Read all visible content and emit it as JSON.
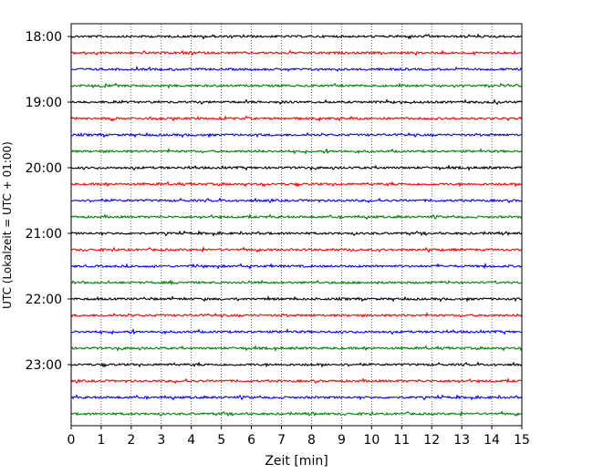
{
  "chart_data": {
    "type": "line",
    "title": "",
    "xlabel": "Zeit  [min]",
    "ylabel": "UTC (Lokalzeit = UTC + 01:00)",
    "xlim": [
      0,
      15
    ],
    "x_ticks": [
      "0",
      "1",
      "2",
      "3",
      "4",
      "5",
      "6",
      "7",
      "8",
      "9",
      "10",
      "11",
      "12",
      "13",
      "14",
      "15"
    ],
    "y_tick_labels": [
      "18:00",
      "19:00",
      "20:00",
      "21:00",
      "22:00",
      "23:00"
    ],
    "minutes_per_trace": 15,
    "trace_color_cycle": [
      "#000000",
      "#ff0000",
      "#0000ff",
      "#008000"
    ],
    "traces": [
      {
        "start": "18:00",
        "color": "#000000"
      },
      {
        "start": "18:15",
        "color": "#ff0000"
      },
      {
        "start": "18:30",
        "color": "#0000ff"
      },
      {
        "start": "18:45",
        "color": "#008000"
      },
      {
        "start": "19:00",
        "color": "#000000"
      },
      {
        "start": "19:15",
        "color": "#ff0000"
      },
      {
        "start": "19:30",
        "color": "#0000ff"
      },
      {
        "start": "19:45",
        "color": "#008000"
      },
      {
        "start": "20:00",
        "color": "#000000"
      },
      {
        "start": "20:15",
        "color": "#ff0000"
      },
      {
        "start": "20:30",
        "color": "#0000ff"
      },
      {
        "start": "20:45",
        "color": "#008000"
      },
      {
        "start": "21:00",
        "color": "#000000"
      },
      {
        "start": "21:15",
        "color": "#ff0000"
      },
      {
        "start": "21:30",
        "color": "#0000ff"
      },
      {
        "start": "21:45",
        "color": "#008000"
      },
      {
        "start": "22:00",
        "color": "#000000"
      },
      {
        "start": "22:15",
        "color": "#ff0000"
      },
      {
        "start": "22:30",
        "color": "#0000ff"
      },
      {
        "start": "22:45",
        "color": "#008000"
      },
      {
        "start": "23:00",
        "color": "#000000"
      },
      {
        "start": "23:15",
        "color": "#ff0000"
      },
      {
        "start": "23:30",
        "color": "#0000ff"
      },
      {
        "start": "23:45",
        "color": "#008000"
      }
    ],
    "grid": "vertical dotted at each minute",
    "legend": "none"
  }
}
